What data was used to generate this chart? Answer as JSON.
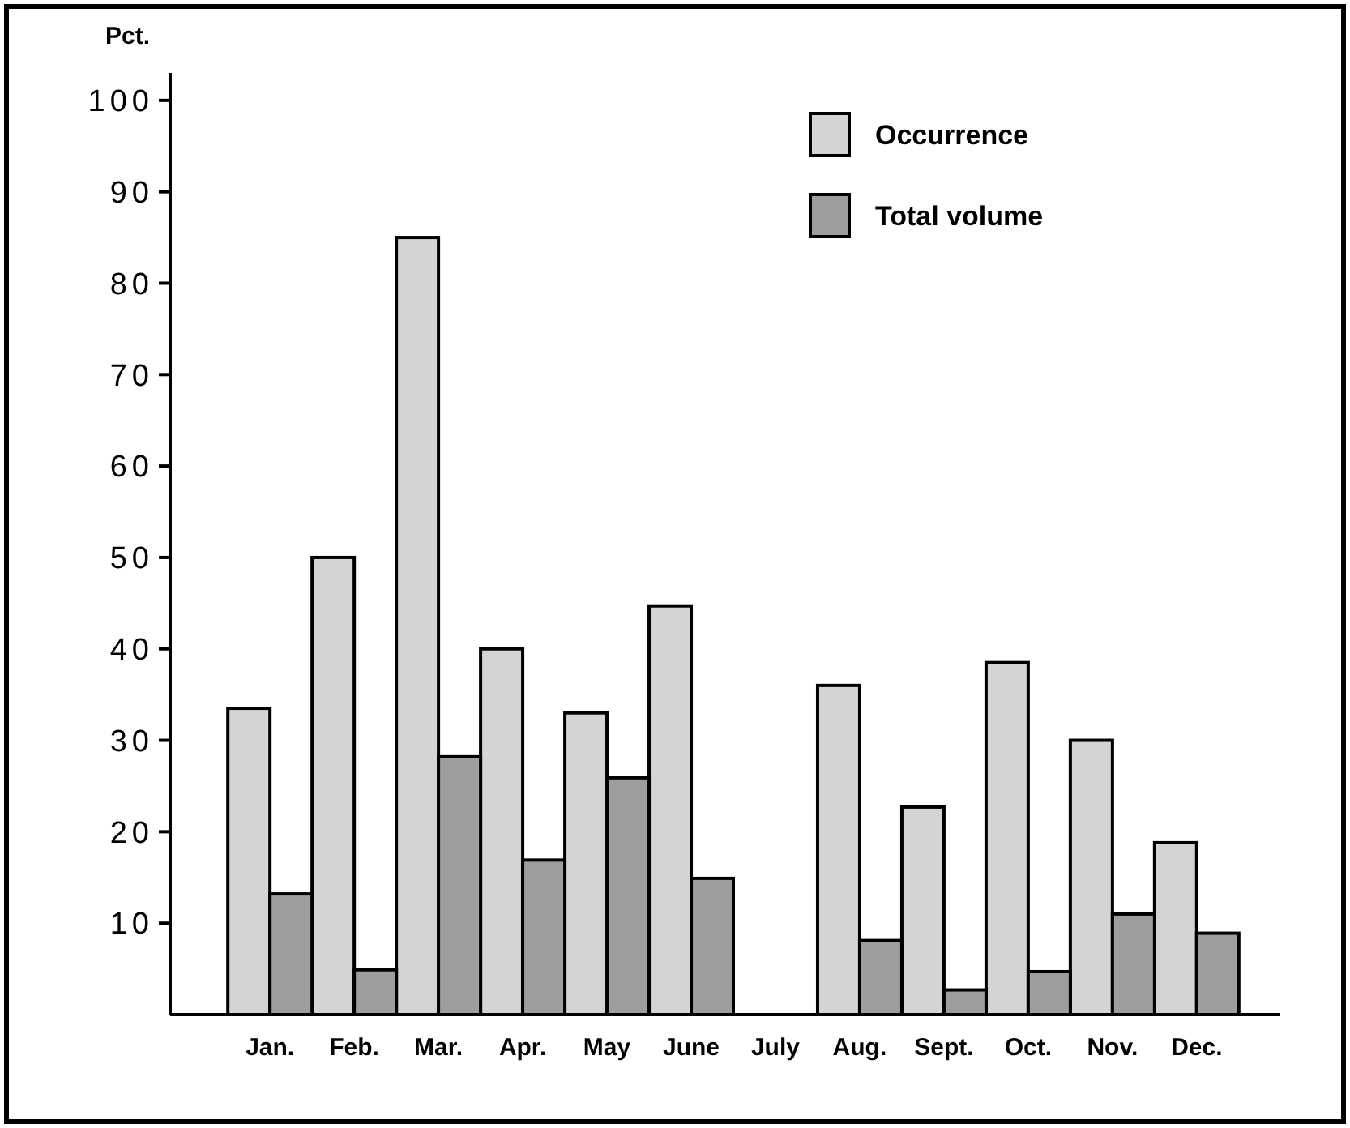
{
  "chart_data": {
    "type": "bar",
    "ylabel": "Pct.",
    "categories": [
      "Jan.",
      "Feb.",
      "Mar.",
      "Apr.",
      "May",
      "June",
      "July",
      "Aug.",
      "Sept.",
      "Oct.",
      "Nov.",
      "Dec."
    ],
    "series": [
      {
        "name": "Occurrence",
        "color": "#d4d4d4",
        "values": [
          33.5,
          50,
          85,
          40,
          33,
          44.7,
          null,
          36,
          22.7,
          38.5,
          30,
          18.8
        ]
      },
      {
        "name": "Total volume",
        "color": "#9e9e9e",
        "values": [
          13.2,
          4.9,
          28.2,
          16.9,
          25.9,
          14.9,
          null,
          8.1,
          2.7,
          4.7,
          11,
          8.9
        ]
      }
    ],
    "ylim": [
      0,
      103
    ],
    "yticks": [
      10,
      20,
      30,
      40,
      50,
      60,
      70,
      80,
      90,
      100
    ],
    "grid": false,
    "legend": "top right"
  }
}
